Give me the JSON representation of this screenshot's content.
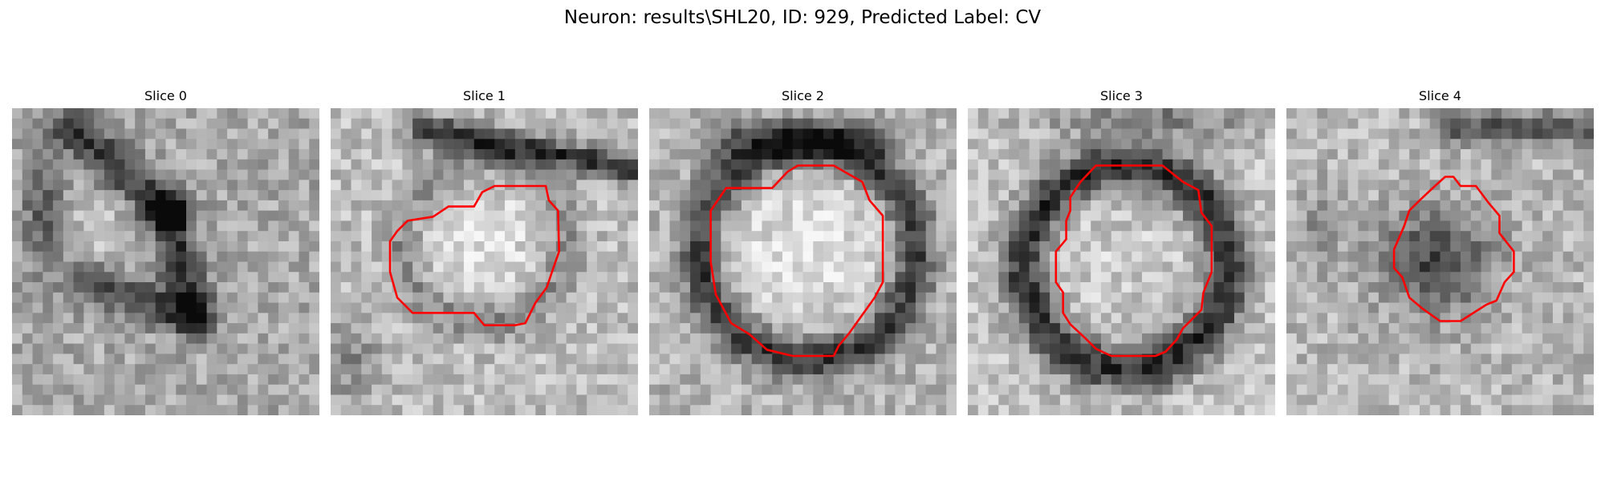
{
  "figure": {
    "title": "Neuron: results\\SHL20, ID: 929, Predicted Label: CV"
  },
  "panels": [
    {
      "title": "Slice 0"
    },
    {
      "title": "Slice 1"
    },
    {
      "title": "Slice 2"
    },
    {
      "title": "Slice 3"
    },
    {
      "title": "Slice 4"
    }
  ],
  "colors": {
    "contour": "#ff0000",
    "background": "#ffffff",
    "text": "#000000"
  }
}
